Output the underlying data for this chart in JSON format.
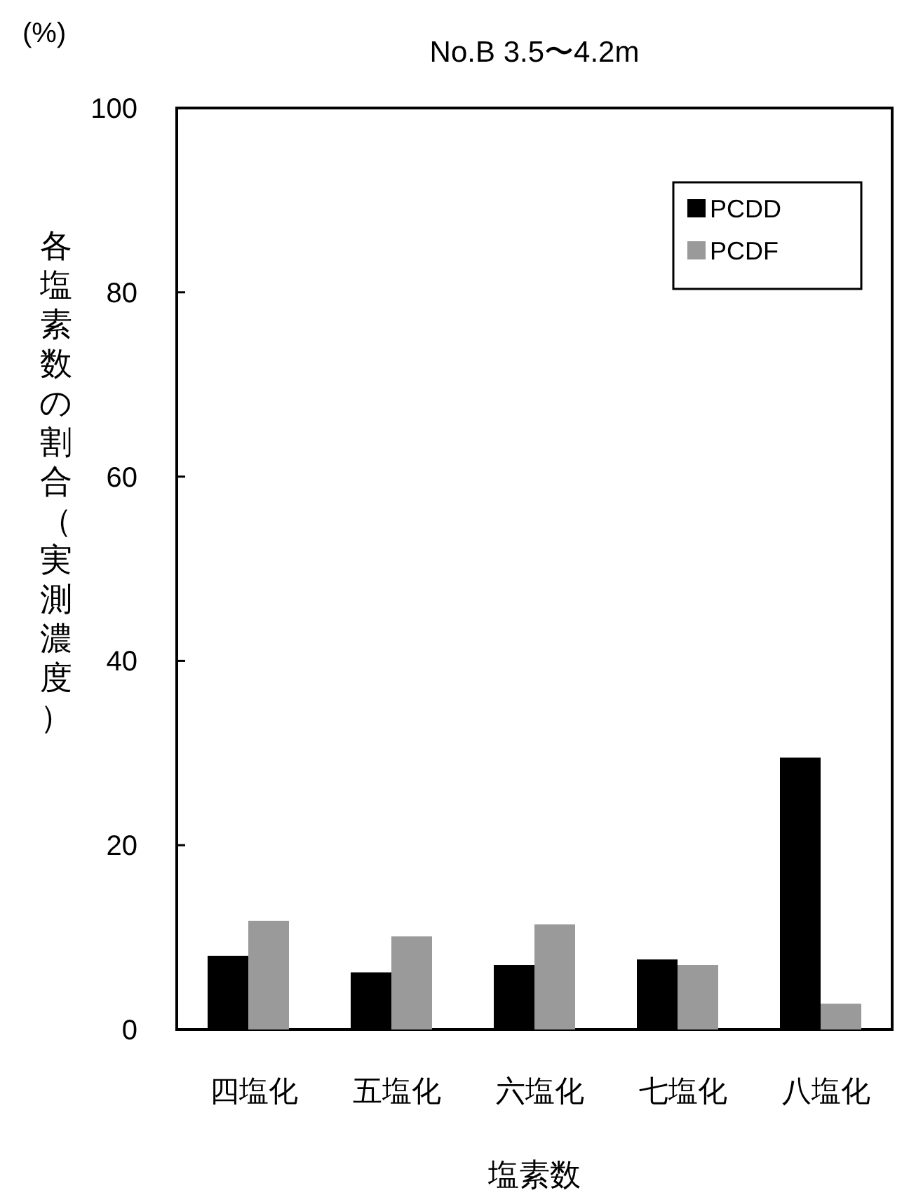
{
  "chart_data": {
    "type": "bar",
    "title": "No.B 3.5〜4.2m",
    "xlabel": "塩素数",
    "ylabel": "各塩素数の割合（実測濃度）",
    "annotations": [
      "(%)"
    ],
    "categories": [
      "四塩化",
      "五塩化",
      "六塩化",
      "七塩化",
      "八塩化"
    ],
    "series": [
      {
        "name": "PCDD",
        "color": "#000000",
        "values": [
          8.0,
          6.2,
          7.0,
          7.6,
          29.5
        ]
      },
      {
        "name": "PCDF",
        "color": "#9a9a9a",
        "values": [
          11.8,
          10.1,
          11.4,
          7.0,
          2.8
        ]
      }
    ],
    "ylim": [
      0,
      100
    ],
    "yticks": [
      0,
      20,
      40,
      60,
      80,
      100
    ],
    "grid": false,
    "legend": "top right"
  }
}
